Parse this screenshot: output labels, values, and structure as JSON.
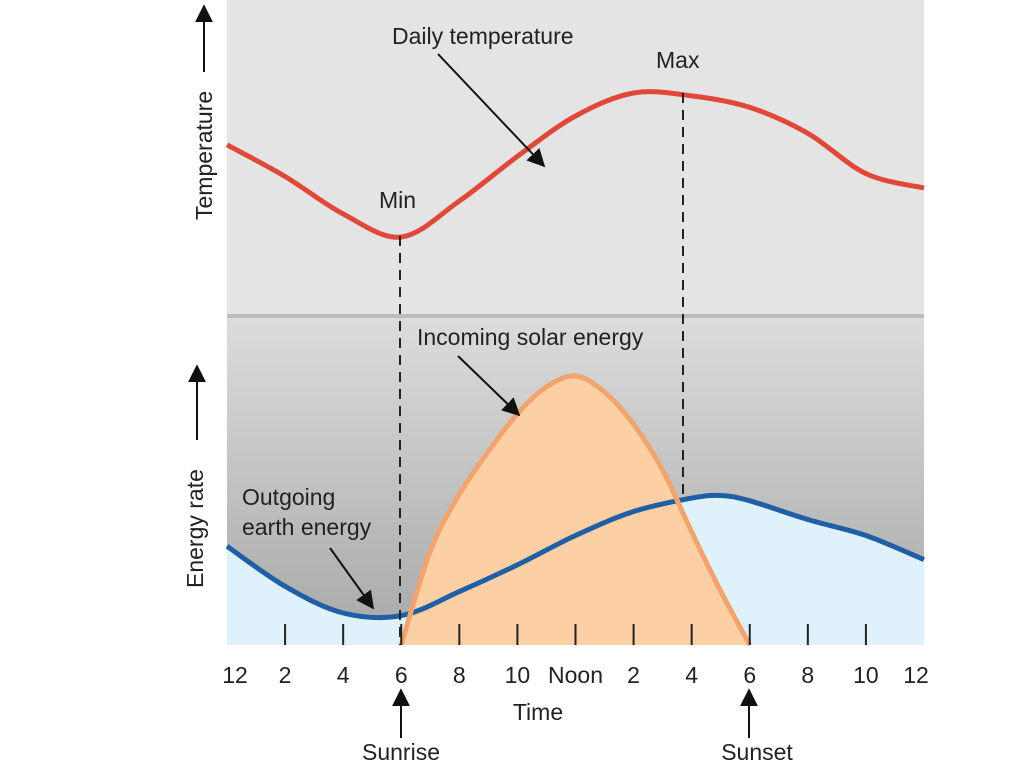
{
  "labels": {
    "daily_temperature": "Daily temperature",
    "max": "Max",
    "min": "Min",
    "incoming_solar": "Incoming solar energy",
    "outgoing_line1": "Outgoing",
    "outgoing_line2": "earth energy",
    "y_top": "Temperature",
    "y_bottom": "Energy rate",
    "x_title": "Time",
    "sunrise": "Sunrise",
    "sunset": "Sunset"
  },
  "x_ticks": [
    "12",
    "2",
    "4",
    "6",
    "8",
    "10",
    "Noon",
    "2",
    "4",
    "6",
    "8",
    "10",
    "12"
  ],
  "colors": {
    "temperature": "#e0493a",
    "solar_stroke": "#f2a46e",
    "solar_fill": "#fcd0a4",
    "earth_stroke": "#1f5fa6",
    "earth_fill": "#dff2fb",
    "top_panel": "#e4e4e4",
    "divider": "#bdbdbd"
  },
  "chart_data": {
    "type": "line",
    "x_unit": "hour of day",
    "x_range": [
      0,
      24
    ],
    "series": [
      {
        "name": "Daily temperature",
        "x": [
          0,
          2,
          4,
          6,
          8,
          10,
          12,
          14,
          16,
          18,
          20,
          22,
          24
        ],
        "values": [
          0.64,
          0.42,
          0.16,
          0.0,
          0.25,
          0.56,
          0.84,
          1.0,
          0.98,
          0.9,
          0.72,
          0.44,
          0.34
        ]
      },
      {
        "name": "Incoming solar energy",
        "x": [
          6,
          7,
          8,
          9,
          10,
          11,
          12,
          13,
          14,
          15,
          16,
          17,
          18
        ],
        "values": [
          0.0,
          0.35,
          0.56,
          0.72,
          0.86,
          0.96,
          1.0,
          0.94,
          0.82,
          0.65,
          0.42,
          0.2,
          0.0
        ]
      },
      {
        "name": "Outgoing earth energy",
        "x": [
          0,
          2,
          4,
          6,
          8,
          10,
          12,
          14,
          16,
          17,
          18,
          20,
          22,
          24
        ],
        "values": [
          0.37,
          0.22,
          0.12,
          0.11,
          0.2,
          0.3,
          0.41,
          0.5,
          0.55,
          0.56,
          0.54,
          0.47,
          0.41,
          0.32
        ]
      }
    ],
    "annotations": [
      "Min",
      "Max",
      "Sunrise",
      "Sunset"
    ],
    "grid": false
  }
}
